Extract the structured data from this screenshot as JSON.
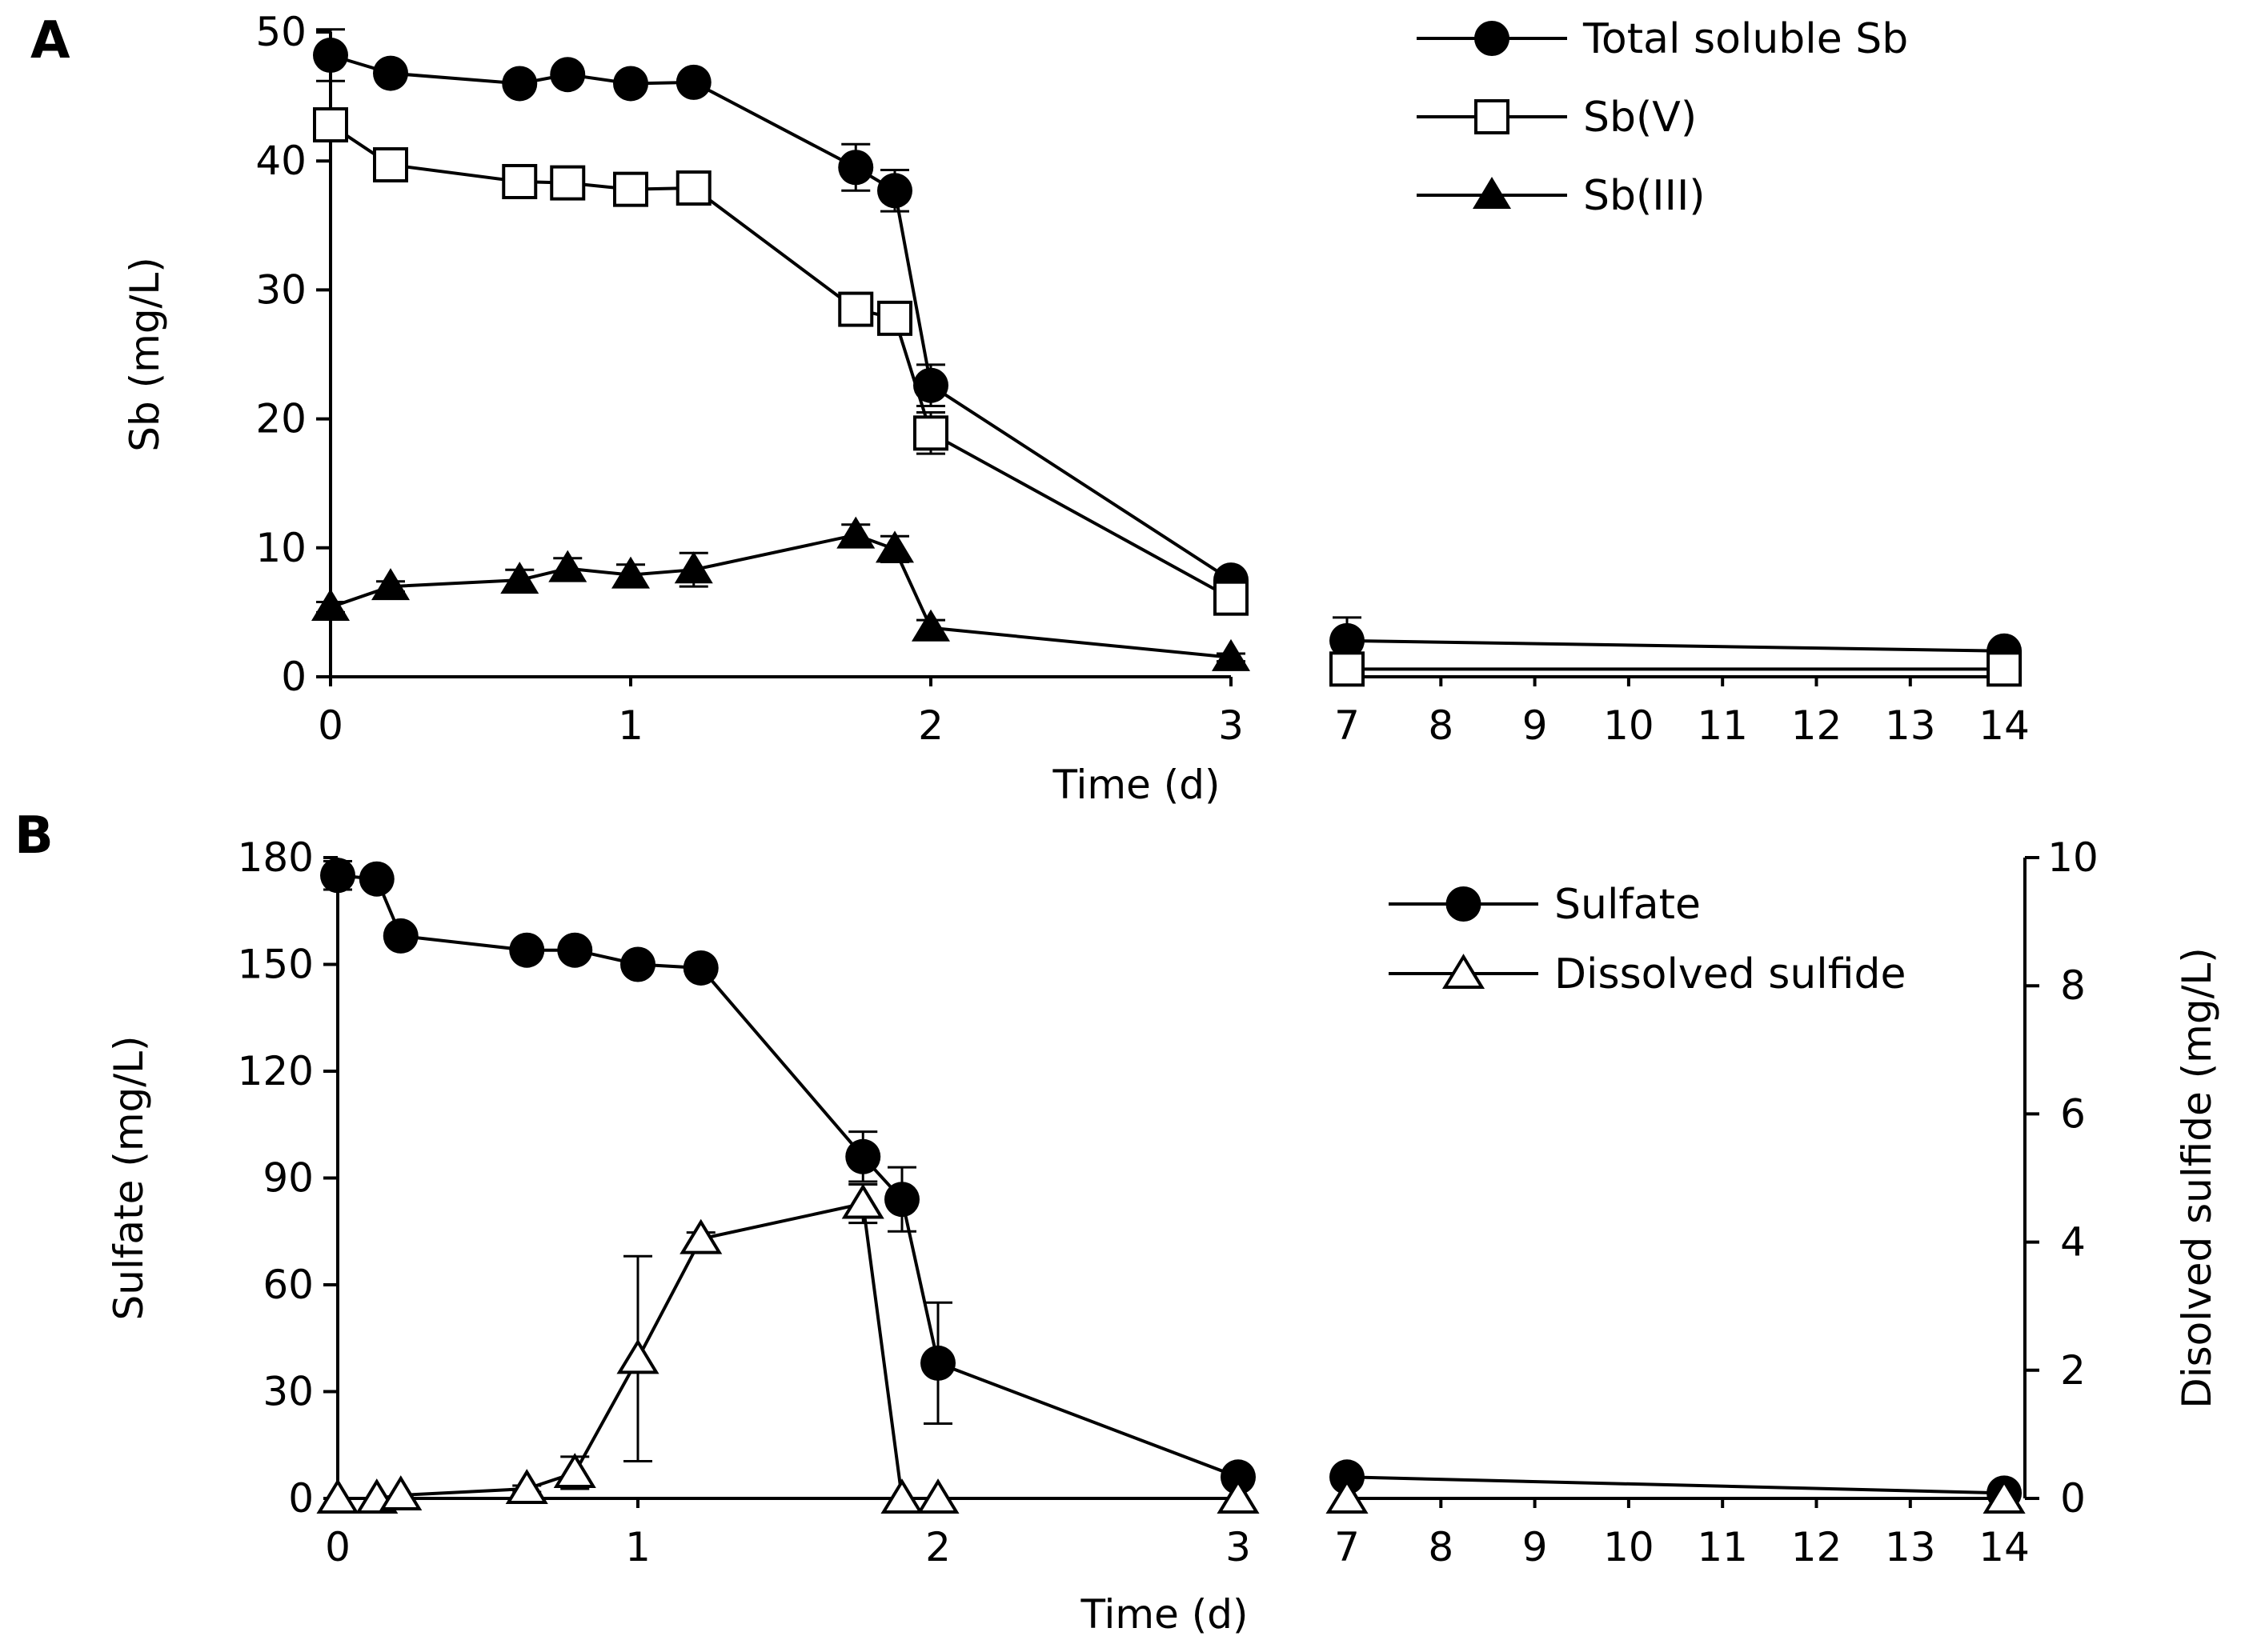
{
  "chart_data": [
    {
      "panel_label": "A",
      "type": "line",
      "xlabel": "Time (d)",
      "ylabel": "Sb (mg/L)",
      "ylim": [
        0,
        50
      ],
      "yticks": [
        "0",
        "10",
        "20",
        "30",
        "40",
        "50"
      ],
      "x_segments": [
        {
          "range": [
            0,
            3
          ],
          "ticks": [
            "0",
            "1",
            "2",
            "3"
          ]
        },
        {
          "range": [
            7,
            14
          ],
          "ticks": [
            "7",
            "8",
            "9",
            "10",
            "11",
            "12",
            "13",
            "14"
          ]
        }
      ],
      "legend_position": "top-right",
      "series": [
        {
          "name": "Total soluble Sb",
          "marker": "filled-circle",
          "x": [
            0,
            0.2,
            0.63,
            0.79,
            1.0,
            1.21,
            1.75,
            1.88,
            2.0,
            3.0,
            7,
            14
          ],
          "y": [
            48.2,
            46.8,
            46.0,
            46.7,
            46.0,
            46.1,
            39.5,
            37.7,
            22.6,
            7.5,
            2.8,
            2.0
          ],
          "err": [
            2.0,
            0.6,
            0.6,
            0.6,
            0.6,
            0.6,
            1.8,
            1.6,
            1.6,
            0.6,
            1.8,
            0.3
          ]
        },
        {
          "name": "Sb(V)",
          "marker": "open-square",
          "x": [
            0,
            0.2,
            0.63,
            0.79,
            1.0,
            1.21,
            1.75,
            1.88,
            2.0,
            3.0,
            7,
            14
          ],
          "y": [
            42.8,
            39.7,
            38.4,
            38.3,
            37.8,
            37.9,
            28.5,
            27.8,
            18.9,
            6.1,
            0.6,
            0.6
          ],
          "err": [
            0.5,
            0.5,
            0.5,
            0.5,
            0.5,
            0.5,
            0.5,
            0.5,
            1.6,
            0.5,
            0.2,
            0.2
          ]
        },
        {
          "name": "Sb(III)",
          "marker": "filled-triangle",
          "x": [
            0,
            0.2,
            0.63,
            0.79,
            1.0,
            1.21,
            1.75,
            1.88,
            2.0,
            3.0,
            7,
            14
          ],
          "y": [
            5.4,
            7.0,
            7.5,
            8.4,
            7.9,
            8.3,
            11.0,
            9.9,
            3.8,
            1.5,
            null,
            null
          ],
          "err": [
            0.4,
            0.4,
            0.8,
            0.8,
            0.8,
            1.3,
            0.8,
            1.0,
            0.6,
            0.3,
            null,
            null
          ]
        }
      ]
    },
    {
      "panel_label": "B",
      "type": "line",
      "xlabel": "Time (d)",
      "ylabel": "Sulfate (mg/L)",
      "ylabel_right": "Disolved sulfide (mg/L)",
      "ylim": [
        0,
        180
      ],
      "ylim_right": [
        0,
        10
      ],
      "yticks": [
        "0",
        "30",
        "60",
        "90",
        "120",
        "150",
        "180"
      ],
      "yticks_right": [
        "0",
        "2",
        "4",
        "6",
        "8",
        "10"
      ],
      "x_segments": [
        {
          "range": [
            0,
            3
          ],
          "ticks": [
            "0",
            "1",
            "2",
            "3"
          ]
        },
        {
          "range": [
            7,
            14
          ],
          "ticks": [
            "7",
            "8",
            "9",
            "10",
            "11",
            "12",
            "13",
            "14"
          ]
        }
      ],
      "legend_position": "top-right",
      "series": [
        {
          "name": "Sulfate",
          "axis": "left",
          "marker": "filled-circle",
          "x": [
            0,
            0.13,
            0.21,
            0.63,
            0.79,
            1.0,
            1.21,
            1.75,
            1.88,
            2.0,
            3.0,
            7,
            14
          ],
          "y": [
            175,
            174,
            158,
            154,
            154,
            150,
            149,
            96,
            84,
            38,
            6,
            6,
            1.5
          ],
          "err": [
            4,
            2,
            2,
            2,
            2,
            2,
            2,
            7,
            9,
            17,
            1,
            1,
            0.5
          ]
        },
        {
          "name": "Dissolved sulfide",
          "axis": "right",
          "marker": "open-triangle",
          "x": [
            0,
            0.13,
            0.21,
            0.63,
            0.79,
            1.0,
            1.21,
            1.75,
            1.88,
            2.0,
            3.0,
            7,
            14
          ],
          "y": [
            0,
            0,
            0.05,
            0.15,
            0.4,
            2.18,
            4.05,
            4.6,
            0,
            0,
            0,
            0,
            0
          ],
          "err": [
            0,
            0,
            0,
            0.05,
            0.25,
            1.6,
            0.1,
            0.3,
            0,
            0,
            0,
            0,
            0
          ]
        }
      ]
    }
  ]
}
